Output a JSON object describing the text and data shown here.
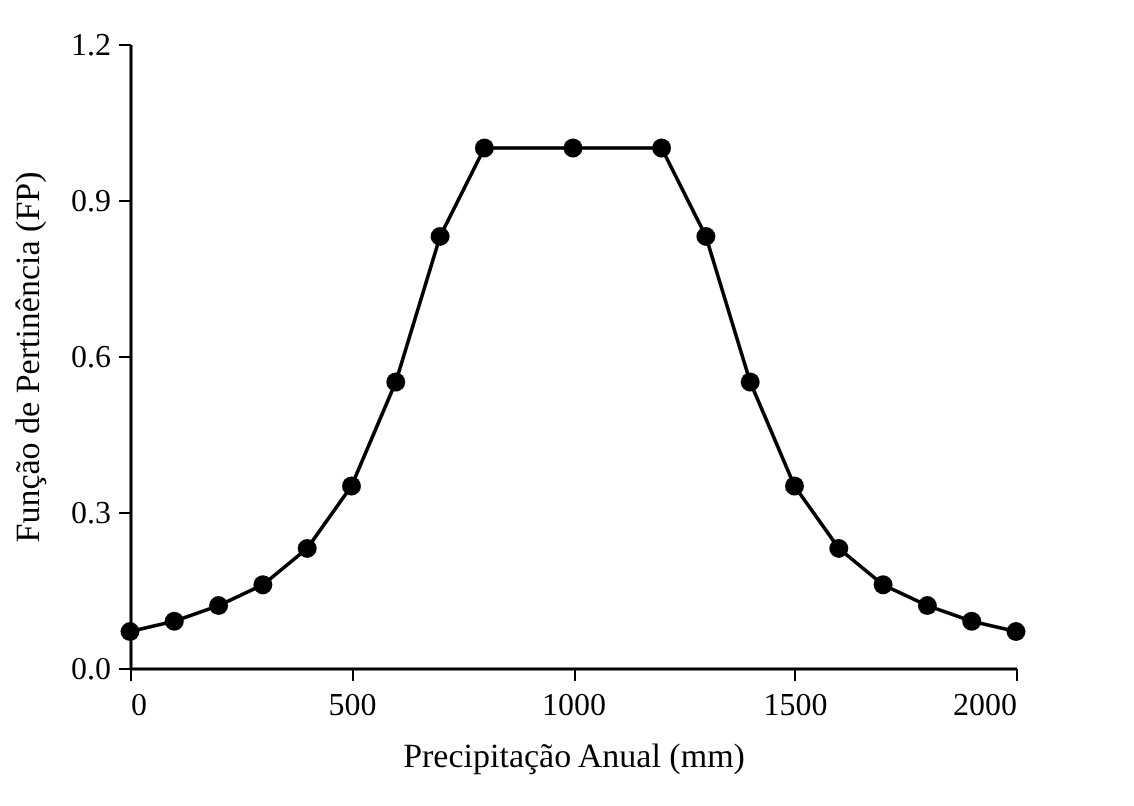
{
  "chart_data": {
    "type": "line",
    "xlabel": "Precipitação Anual (mm)",
    "ylabel": "Função de Pertinência (FP)",
    "x": [
      0,
      100,
      200,
      300,
      400,
      500,
      600,
      700,
      800,
      1000,
      1200,
      1300,
      1400,
      1500,
      1600,
      1700,
      1800,
      1900,
      2000
    ],
    "series": [
      {
        "color": "#000000",
        "values": [
          0.07,
          0.09,
          0.12,
          0.16,
          0.23,
          0.35,
          0.55,
          0.83,
          1.0,
          1.0,
          1.0,
          0.83,
          0.55,
          0.35,
          0.23,
          0.16,
          0.12,
          0.09,
          0.07
        ]
      }
    ],
    "xlim": [
      0,
      2000
    ],
    "xticks": [
      0,
      500,
      1000,
      1500,
      2000
    ],
    "ylim": [
      0,
      1.2
    ],
    "yticks": [
      {
        "value": 0,
        "label": "0.0"
      },
      {
        "value": 0.3,
        "label": "0.3"
      },
      {
        "value": 0.6,
        "label": "0.6"
      },
      {
        "value": 0.9,
        "label": "0.9"
      },
      {
        "value": 1.2,
        "label": "1.2"
      }
    ],
    "grid": false,
    "marker": "circle",
    "line_style": "solid"
  }
}
